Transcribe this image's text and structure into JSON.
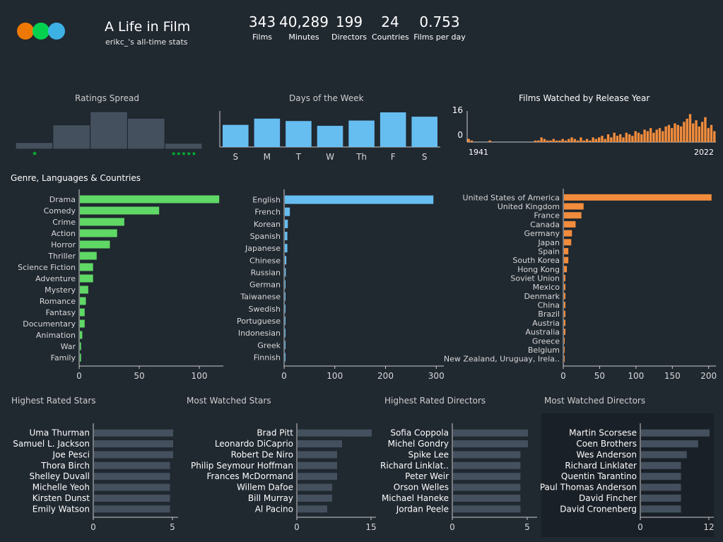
{
  "header": {
    "title": "A Life in Film",
    "subtitle": "erikc_'s all-time stats",
    "logo_colors": [
      "#ff8000",
      "#00e054",
      "#40bcf4"
    ]
  },
  "stats": [
    {
      "value": "343",
      "label": "Films"
    },
    {
      "value": "40,289",
      "label": "Minutes"
    },
    {
      "value": "199",
      "label": "Directors"
    },
    {
      "value": "24",
      "label": "Countries"
    },
    {
      "value": "0.753",
      "label": "Films per day"
    }
  ],
  "sections": {
    "ratings": "Ratings Spread",
    "days": "Days of the Week",
    "release": "Films Watched by Release Year",
    "genres": "Genre, Languages & Countries",
    "highest_stars": "Highest Rated Stars",
    "most_stars": "Most Watched Stars",
    "highest_directors": "Highest Rated Directors",
    "most_directors": "Most Watched Directors"
  },
  "colors": {
    "background": "#202830",
    "green": "#5fd865",
    "blue": "#66bdf0",
    "orange": "#f28c3c",
    "slate": "#44505e",
    "star": "#00c030"
  },
  "chart_data": [
    {
      "id": "ratings",
      "type": "bar",
      "title": "Ratings Spread",
      "categories": [
        "1",
        "2",
        "3",
        "4",
        "5"
      ],
      "values": [
        9,
        33,
        51,
        42,
        8
      ],
      "left_label": "★",
      "right_label": "★★★★★"
    },
    {
      "id": "days",
      "type": "bar",
      "title": "Days of the Week",
      "categories": [
        "S",
        "M",
        "T",
        "W",
        "Th",
        "F",
        "S"
      ],
      "values": [
        46,
        59,
        54,
        44,
        55,
        72,
        63
      ]
    },
    {
      "id": "release",
      "type": "bar",
      "title": "Films Watched by Release Year",
      "x_start": 1941,
      "x_end": 2022,
      "y_ticks": [
        0,
        16
      ],
      "values": [
        2,
        1,
        0,
        0,
        0,
        0,
        0,
        1,
        0,
        0,
        0,
        0,
        0,
        0,
        0,
        0,
        0,
        0,
        0,
        0,
        0,
        0,
        1,
        1,
        3,
        2,
        1,
        1,
        2,
        1,
        1,
        2,
        1,
        2,
        3,
        2,
        1,
        3,
        1,
        2,
        1,
        3,
        2,
        3,
        4,
        2,
        5,
        3,
        6,
        4,
        5,
        3,
        6,
        5,
        4,
        7,
        6,
        5,
        8,
        7,
        9,
        6,
        8,
        9,
        7,
        10,
        11,
        9,
        12,
        11,
        10,
        13,
        15,
        18,
        12,
        14,
        10,
        13,
        16,
        9,
        11,
        7
      ]
    },
    {
      "id": "genres",
      "type": "bar",
      "orientation": "horizontal",
      "categories": [
        "Drama",
        "Comedy",
        "Crime",
        "Action",
        "Horror",
        "Thriller",
        "Science Fiction",
        "Adventure",
        "Mystery",
        "Romance",
        "Fantasy",
        "Documentary",
        "Animation",
        "War",
        "Family"
      ],
      "values": [
        116,
        66,
        37,
        31,
        25,
        14,
        11,
        11,
        7,
        5,
        4,
        4,
        2,
        1,
        1
      ],
      "x_ticks": [
        0,
        50,
        100
      ],
      "xlim": [
        0,
        120
      ]
    },
    {
      "id": "languages",
      "type": "bar",
      "orientation": "horizontal",
      "categories": [
        "English",
        "French",
        "Korean",
        "Spanish",
        "Japanese",
        "Chinese",
        "Russian",
        "German",
        "Taiwanese",
        "Swedish",
        "Portuguese",
        "Indonesian",
        "Greek",
        "Finnish"
      ],
      "values": [
        293,
        10,
        6,
        5,
        5,
        3,
        2,
        1,
        1,
        1,
        1,
        1,
        1,
        1
      ],
      "x_ticks": [
        0,
        100,
        200,
        300
      ],
      "xlim": [
        0,
        308
      ]
    },
    {
      "id": "countries",
      "type": "bar",
      "orientation": "horizontal",
      "categories": [
        "United States of America",
        "United Kingdom",
        "France",
        "Canada",
        "Germany",
        "Japan",
        "Spain",
        "South Korea",
        "Hong Kong",
        "Soviet Union",
        "Mexico",
        "Denmark",
        "China",
        "Brazil",
        "Austria",
        "Australia",
        "Greece",
        "Belgium",
        "New Zealand, Uruguay, Irela.."
      ],
      "values": [
        203,
        27,
        24,
        16,
        11,
        10,
        6,
        6,
        4,
        2,
        2,
        2,
        2,
        2,
        2,
        2,
        1,
        1,
        1
      ],
      "x_ticks": [
        0,
        50,
        100,
        150,
        200
      ],
      "xlim": [
        0,
        210
      ]
    },
    {
      "id": "highest_stars",
      "type": "bar",
      "orientation": "horizontal",
      "categories": [
        "Uma Thurman",
        "Samuel L. Jackson",
        "Joe Pesci",
        "Thora Birch",
        "Shelley Duvall",
        "Michelle Yeoh",
        "Kirsten Dunst",
        "Emily Watson"
      ],
      "values": [
        5.0,
        5.0,
        5.0,
        4.8,
        4.8,
        4.8,
        4.8,
        4.8
      ],
      "x_ticks": [
        0,
        5
      ],
      "xlim": [
        0,
        5
      ]
    },
    {
      "id": "most_stars",
      "type": "bar",
      "orientation": "horizontal",
      "categories": [
        "Brad Pitt",
        "Leonardo DiCaprio",
        "Robert De Niro",
        "Philip Seymour Hoffman",
        "Frances McDormand",
        "Willem Dafoe",
        "Bill Murray",
        "Al Pacino"
      ],
      "values": [
        15,
        9,
        8,
        8,
        8,
        7,
        7,
        6
      ],
      "x_ticks": [
        0,
        15
      ],
      "xlim": [
        0,
        15
      ]
    },
    {
      "id": "highest_directors",
      "type": "bar",
      "orientation": "horizontal",
      "categories": [
        "Sofia Coppola",
        "Michel Gondry",
        "Spike Lee",
        "Richard Linklat..",
        "Peter Weir",
        "Orson Welles",
        "Michael Haneke",
        "Jordan Peele"
      ],
      "values": [
        5.0,
        5.0,
        4.5,
        4.5,
        4.5,
        4.5,
        4.5,
        4.5
      ],
      "x_ticks": [
        0,
        5
      ],
      "xlim": [
        0,
        5
      ]
    },
    {
      "id": "most_directors",
      "type": "bar",
      "orientation": "horizontal",
      "categories": [
        "Martin Scorsese",
        "Coen Brothers",
        "Wes Anderson",
        "Richard Linklater",
        "Quentin Tarantino",
        "Paul Thomas Anderson",
        "David Fincher",
        "David Cronenberg"
      ],
      "values": [
        12,
        10,
        8,
        7,
        7,
        7,
        7,
        7
      ],
      "x_ticks": [
        0,
        12
      ],
      "xlim": [
        0,
        12
      ]
    }
  ]
}
